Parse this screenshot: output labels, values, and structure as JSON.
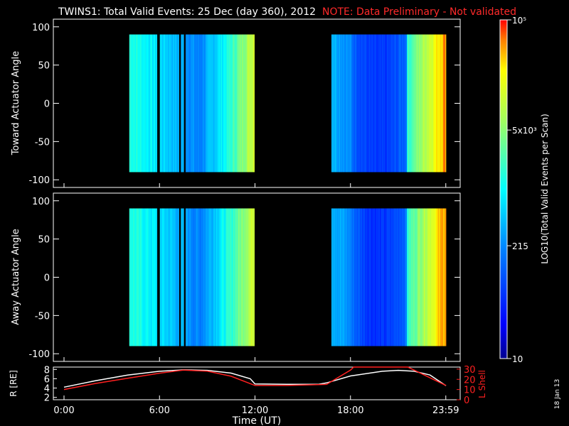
{
  "chart_data": {
    "type": "heatmap",
    "title": "TWINS1: Total Valid Events: 25 Dec (day 360), 2012",
    "title_note": "NOTE: Data Preliminary - Not validated",
    "panels": [
      {
        "ylabel": "Toward Actuator Angle",
        "ylim": [
          -110,
          110
        ],
        "yticks": [
          "100",
          "50",
          "0",
          "-50",
          "-100"
        ],
        "y_data_range": [
          -90,
          90
        ]
      },
      {
        "ylabel": "Away Actuator Angle",
        "ylim": [
          -110,
          110
        ],
        "yticks": [
          "100",
          "50",
          "0",
          "-50",
          "-100"
        ],
        "y_data_range": [
          -90,
          90
        ]
      }
    ],
    "colorbar": {
      "label": "LOG10(Total Valid Events per Scan)",
      "range": [
        10,
        100000
      ],
      "scale": "log",
      "ticks": [
        "10",
        "215",
        "5x10³",
        "10⁵"
      ]
    },
    "data_segments_hours": [
      [
        4.1,
        11.95
      ],
      [
        16.8,
        23.99
      ]
    ],
    "gaps_hours": [
      [
        5.83,
        6.0
      ],
      [
        7.17,
        7.3
      ],
      [
        7.5,
        7.58
      ]
    ],
    "orbit_panel": {
      "ylabel_left": "R [RE]",
      "ylabel_right": "L Shell",
      "left_ticks": [
        "8",
        "6",
        "4",
        "2"
      ],
      "right_ticks": [
        "30",
        "20",
        "10",
        "0"
      ],
      "left_range": [
        1.5,
        8.5
      ],
      "right_range": [
        0,
        32
      ],
      "series": [
        {
          "color": "#ffffff",
          "x_hours": [
            0,
            2,
            4,
            6,
            7.5,
            9,
            10.5,
            11.7,
            12,
            14,
            16,
            16.5,
            18,
            20,
            21,
            22,
            23,
            24
          ],
          "values": [
            4.2,
            5.6,
            6.8,
            7.6,
            7.9,
            7.8,
            7.2,
            6.0,
            4.9,
            4.8,
            4.8,
            5.1,
            6.6,
            7.6,
            7.8,
            7.6,
            6.8,
            4.5
          ]
        },
        {
          "color": "#ff2020",
          "x_hours": [
            0,
            2,
            4,
            6,
            7.5,
            9,
            10.5,
            12,
            14,
            16.5,
            18,
            18.2,
            21.6,
            22,
            24
          ],
          "values": [
            10,
            16,
            21,
            26,
            29,
            28,
            23,
            14,
            14,
            15,
            29,
            32,
            32,
            29,
            14
          ]
        }
      ]
    },
    "xlabel": "Time (UT)",
    "xticks": [
      "0:00",
      "6:00",
      "12:00",
      "18:00",
      "23:59"
    ],
    "xlim": [
      0,
      24
    ],
    "side_date": "18 Jan 13"
  }
}
